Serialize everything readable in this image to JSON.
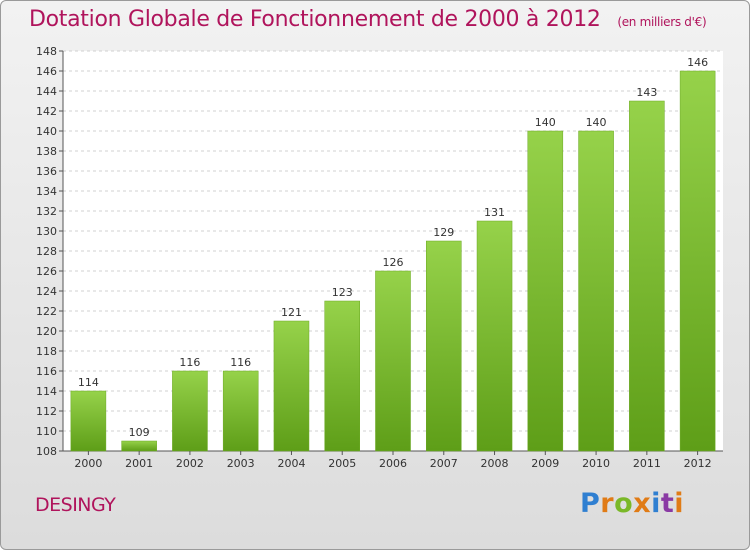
{
  "header": {
    "title": "Dotation Globale de Fonctionnement de 2000 à 2012",
    "unit": "(en milliers d'€)"
  },
  "footer": {
    "commune": "DESINGY",
    "logo": "Proxiti"
  },
  "colors": {
    "title": "#b0145c",
    "bar_light": "#96d24a",
    "bar_dark": "#5e9e18",
    "logo_letters": [
      "#2f7fd1",
      "#e07b16",
      "#7ab828",
      "#e07b16",
      "#2f7fd1",
      "#8a3aa4",
      "#e07b16"
    ]
  },
  "chart_data": {
    "type": "bar",
    "categories": [
      "2000",
      "2001",
      "2002",
      "2003",
      "2004",
      "2005",
      "2006",
      "2007",
      "2008",
      "2009",
      "2010",
      "2011",
      "2012"
    ],
    "values": [
      114,
      109,
      116,
      116,
      121,
      123,
      126,
      129,
      131,
      140,
      140,
      143,
      146
    ],
    "ylim": [
      108,
      148
    ],
    "yticks": [
      108,
      110,
      112,
      114,
      116,
      118,
      120,
      122,
      124,
      126,
      128,
      130,
      132,
      134,
      136,
      138,
      140,
      142,
      144,
      146,
      148
    ],
    "grid": true,
    "xlabel": "",
    "ylabel": ""
  }
}
